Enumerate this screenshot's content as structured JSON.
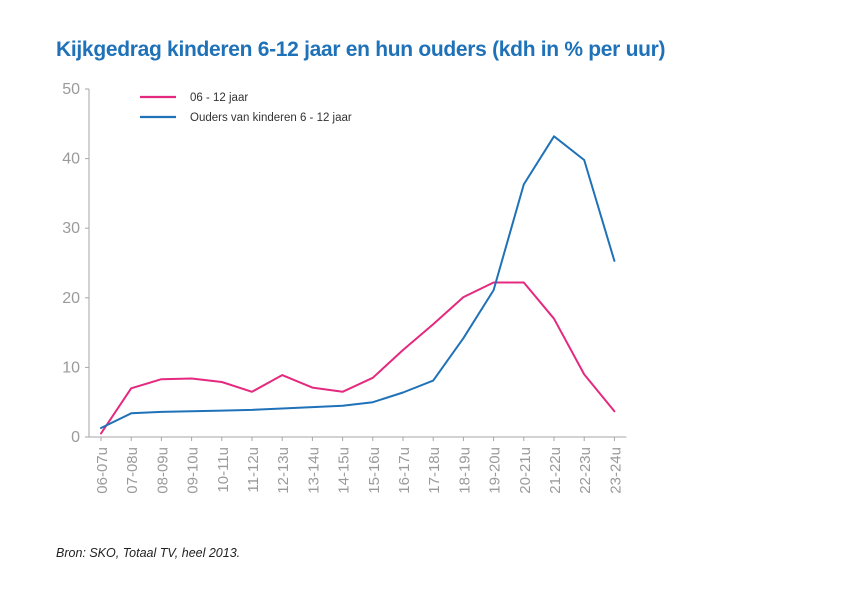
{
  "source": "Bron: SKO, Totaal TV, heel 2013.",
  "colors": {
    "title": "#1f71b8",
    "axis": "#a6a6a6",
    "tick_label": "#9a9a9a",
    "series_kids": "#e4297f",
    "series_parents": "#1f71b8"
  },
  "chart_data": {
    "type": "line",
    "title": "Kijkgedrag kinderen 6-12 jaar en hun ouders (kdh in % per uur)",
    "xlabel": "",
    "ylabel": "",
    "ylim": [
      0,
      50
    ],
    "yticks": [
      0,
      10,
      20,
      30,
      40,
      50
    ],
    "grid": false,
    "legend_position": "top-left",
    "categories": [
      "06-07u",
      "07-08u",
      "08-09u",
      "09-10u",
      "10-11u",
      "11-12u",
      "12-13u",
      "13-14u",
      "14-15u",
      "15-16u",
      "16-17u",
      "17-18u",
      "18-19u",
      "19-20u",
      "20-21u",
      "21-22u",
      "22-23u",
      "23-24u"
    ],
    "series": [
      {
        "name": "06 - 12 jaar",
        "color": "#e4297f",
        "values": [
          0.5,
          7,
          8.3,
          8.4,
          7.9,
          6.5,
          8.9,
          7.1,
          6.5,
          8.5,
          12.5,
          16.2,
          20.1,
          22.2,
          22.2,
          17,
          9,
          3.7
        ]
      },
      {
        "name": "Ouders van kinderen 6 - 12 jaar",
        "color": "#1f71b8",
        "values": [
          1.3,
          3.4,
          3.6,
          3.7,
          3.8,
          3.9,
          4.1,
          4.3,
          4.5,
          5,
          6.4,
          8.1,
          14.2,
          21.1,
          36.3,
          43.2,
          39.8,
          25.3
        ]
      }
    ]
  }
}
